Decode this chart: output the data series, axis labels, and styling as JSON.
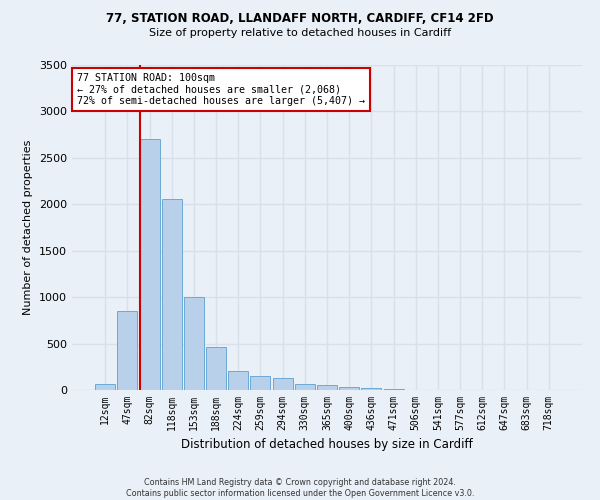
{
  "title": "77, STATION ROAD, LLANDAFF NORTH, CARDIFF, CF14 2FD",
  "subtitle": "Size of property relative to detached houses in Cardiff",
  "xlabel": "Distribution of detached houses by size in Cardiff",
  "ylabel": "Number of detached properties",
  "bar_labels": [
    "12sqm",
    "47sqm",
    "82sqm",
    "118sqm",
    "153sqm",
    "188sqm",
    "224sqm",
    "259sqm",
    "294sqm",
    "330sqm",
    "365sqm",
    "400sqm",
    "436sqm",
    "471sqm",
    "506sqm",
    "541sqm",
    "577sqm",
    "612sqm",
    "647sqm",
    "683sqm",
    "718sqm"
  ],
  "bar_values": [
    60,
    850,
    2700,
    2060,
    1000,
    460,
    210,
    150,
    130,
    65,
    50,
    30,
    20,
    10,
    5,
    2,
    1,
    1,
    0,
    0,
    0
  ],
  "bar_color": "#b8d0ea",
  "bar_edge_color": "#6aaad4",
  "vline_color": "#cc0000",
  "annotation_line1": "77 STATION ROAD: 100sqm",
  "annotation_line2": "← 27% of detached houses are smaller (2,068)",
  "annotation_line3": "72% of semi-detached houses are larger (5,407) →",
  "annotation_box_color": "#ffffff",
  "annotation_box_edge_color": "#cc0000",
  "ylim": [
    0,
    3500
  ],
  "yticks": [
    0,
    500,
    1000,
    1500,
    2000,
    2500,
    3000,
    3500
  ],
  "bg_color": "#eaf0f8",
  "grid_color": "#d8e0ec",
  "footer_line1": "Contains HM Land Registry data © Crown copyright and database right 2024.",
  "footer_line2": "Contains public sector information licensed under the Open Government Licence v3.0."
}
